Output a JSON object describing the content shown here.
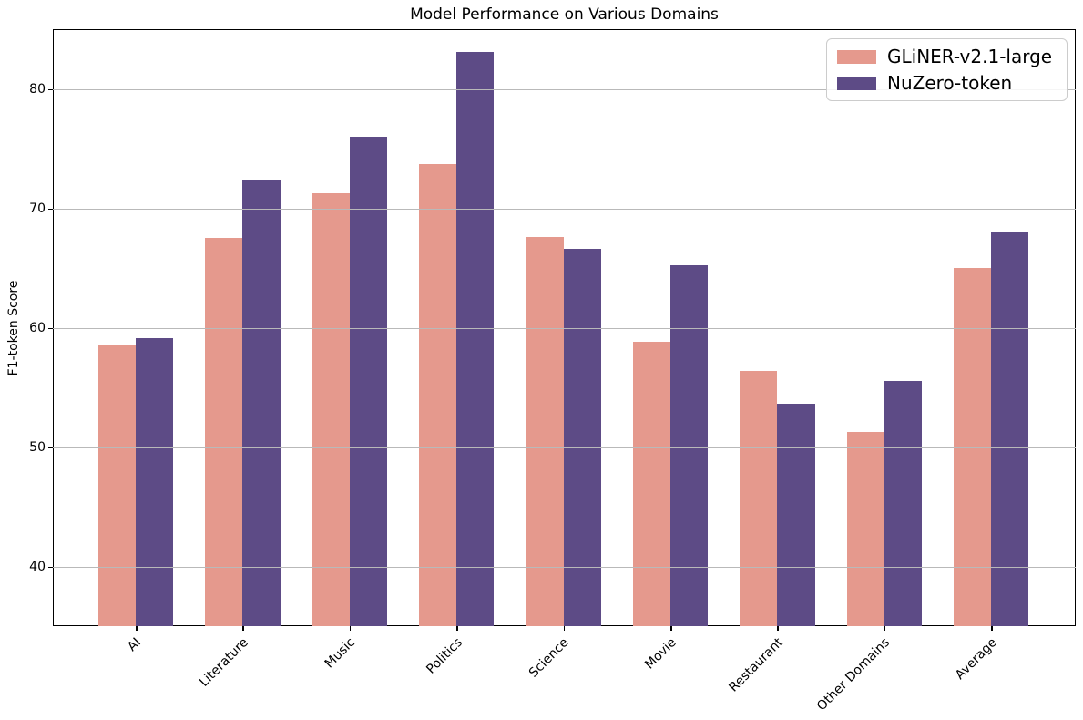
{
  "chart_data": {
    "type": "bar",
    "title": "Model Performance on Various Domains",
    "xlabel": "",
    "ylabel": "F1-token Score",
    "categories": [
      "AI",
      "Literature",
      "Music",
      "Politics",
      "Science",
      "Movie",
      "Restaurant",
      "Other Domains",
      "Average"
    ],
    "series": [
      {
        "name": "GLiNER-v2.1-large",
        "color": "#e5998d",
        "values": [
          58.6,
          67.5,
          71.3,
          73.7,
          67.6,
          58.8,
          56.4,
          51.3,
          65.0
        ]
      },
      {
        "name": "NuZero-token",
        "color": "#5d4b86",
        "values": [
          59.1,
          72.4,
          76.0,
          83.1,
          66.6,
          65.2,
          53.6,
          55.5,
          68.0
        ]
      }
    ],
    "ylim": [
      35,
      85
    ],
    "yticks": [
      40,
      50,
      60,
      70,
      80
    ],
    "grid": true,
    "grid_on_top": true,
    "legend_position": "upper right",
    "xtick_rotation_deg": 45,
    "colors": {
      "grid": "#b9b9b9",
      "spine": "#000000",
      "background": "#ffffff",
      "text": "#000000"
    }
  }
}
